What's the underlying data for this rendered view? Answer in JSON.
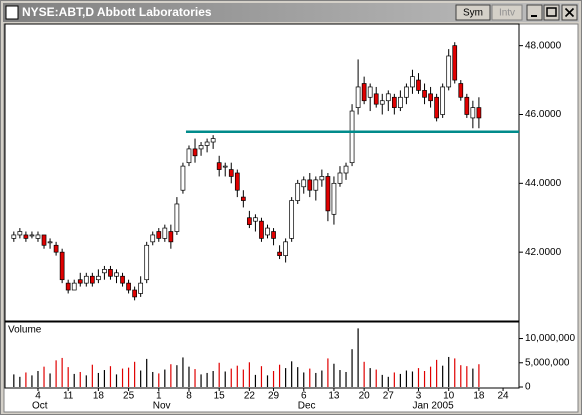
{
  "window": {
    "title": "NYSE:ABT,D Abbott Laboratories",
    "buttons": [
      "Sym",
      "Intv"
    ]
  },
  "chart_data": {
    "type": "candlestick",
    "categories": [
      null,
      null,
      null,
      null,
      "4",
      null,
      null,
      null,
      null,
      "11",
      null,
      null,
      null,
      null,
      "18",
      null,
      null,
      null,
      null,
      "25",
      null,
      null,
      null,
      null,
      "1",
      null,
      null,
      null,
      null,
      "8",
      null,
      null,
      null,
      null,
      "15",
      null,
      null,
      null,
      null,
      "22",
      null,
      null,
      null,
      "29",
      null,
      null,
      null,
      null,
      "6",
      null,
      null,
      null,
      null,
      "13",
      null,
      null,
      null,
      null,
      "20",
      null,
      null,
      null,
      "27",
      null,
      null,
      null,
      null,
      "3",
      null,
      null,
      null,
      null,
      "10",
      null,
      null,
      null,
      null,
      "18",
      null,
      null,
      null,
      "24"
    ],
    "months": [
      null,
      null,
      null,
      null,
      "Oct",
      null,
      null,
      null,
      null,
      null,
      null,
      null,
      null,
      null,
      null,
      null,
      null,
      null,
      null,
      null,
      null,
      null,
      null,
      null,
      "Nov",
      null,
      null,
      null,
      null,
      null,
      null,
      null,
      null,
      null,
      null,
      null,
      null,
      null,
      null,
      null,
      null,
      null,
      null,
      null,
      null,
      null,
      null,
      null,
      "Dec",
      null,
      null,
      null,
      null,
      null,
      null,
      null,
      null,
      null,
      null,
      null,
      null,
      null,
      null,
      null,
      null,
      null,
      null,
      "Jan 2005",
      null,
      null,
      null,
      null,
      null,
      null,
      null,
      null,
      null,
      null,
      null,
      null,
      null,
      null
    ],
    "open": [
      42.4,
      42.5,
      42.5,
      42.5,
      42.4,
      42.5,
      42.3,
      42.2,
      42.0,
      41.1,
      40.9,
      41.2,
      41.1,
      41.3,
      41.2,
      41.4,
      41.5,
      41.3,
      41.3,
      41.1,
      40.9,
      40.8,
      41.2,
      42.3,
      42.6,
      42.4,
      42.6,
      42.6,
      43.8,
      44.6,
      45.0,
      45.0,
      45.1,
      45.2,
      44.6,
      44.5,
      44.4,
      44.3,
      43.6,
      43.0,
      42.9,
      42.9,
      42.5,
      42.6,
      42.0,
      41.9,
      42.4,
      43.5,
      43.9,
      44.1,
      43.8,
      44.1,
      44.2,
      43.1,
      44.0,
      44.3,
      44.6,
      46.2,
      46.9,
      46.5,
      46.6,
      46.3,
      46.4,
      46.5,
      46.2,
      46.5,
      46.8,
      47.0,
      46.7,
      46.6,
      46.5,
      46.0,
      46.8,
      48.0,
      46.9,
      46.5,
      45.9,
      46.2,
      null,
      null,
      null,
      null
    ],
    "high": [
      42.6,
      42.7,
      42.6,
      42.6,
      42.6,
      42.5,
      42.4,
      42.3,
      42.1,
      41.2,
      41.2,
      41.4,
      41.4,
      41.4,
      41.5,
      41.6,
      41.6,
      41.5,
      41.4,
      41.2,
      41.0,
      41.3,
      42.3,
      42.6,
      42.7,
      42.8,
      42.8,
      43.6,
      44.6,
      45.1,
      45.3,
      45.2,
      45.3,
      45.4,
      44.8,
      44.6,
      44.6,
      44.4,
      43.8,
      43.2,
      43.1,
      43.0,
      42.8,
      42.7,
      42.2,
      42.4,
      43.6,
      44.1,
      44.2,
      44.3,
      44.2,
      44.4,
      44.3,
      44.2,
      44.5,
      44.6,
      46.3,
      47.6,
      47.1,
      46.9,
      46.8,
      46.6,
      46.7,
      46.6,
      46.7,
      46.9,
      47.3,
      47.2,
      46.9,
      46.8,
      46.6,
      46.9,
      47.9,
      48.1,
      47.0,
      46.6,
      46.4,
      46.5,
      null,
      null,
      null,
      null
    ],
    "low": [
      42.3,
      42.4,
      42.3,
      42.4,
      42.3,
      42.1,
      42.1,
      41.9,
      41.1,
      40.8,
      40.9,
      41.0,
      41.0,
      41.0,
      41.1,
      41.2,
      41.2,
      41.1,
      41.0,
      40.8,
      40.6,
      40.7,
      41.1,
      42.2,
      42.3,
      42.3,
      42.1,
      42.5,
      43.7,
      44.5,
      44.6,
      44.8,
      44.9,
      45.0,
      44.2,
      44.2,
      44.0,
      43.6,
      43.3,
      42.7,
      42.6,
      42.3,
      42.4,
      42.2,
      41.8,
      41.7,
      42.3,
      43.4,
      43.7,
      43.6,
      43.5,
      43.9,
      42.9,
      42.8,
      43.9,
      44.1,
      44.5,
      46.0,
      46.3,
      46.1,
      46.2,
      46.0,
      46.1,
      46.0,
      46.1,
      46.3,
      46.6,
      46.6,
      46.3,
      46.2,
      45.8,
      45.9,
      46.7,
      46.9,
      46.4,
      45.9,
      45.6,
      45.6,
      null,
      null,
      null,
      null
    ],
    "close": [
      42.5,
      42.6,
      42.4,
      42.5,
      42.5,
      42.2,
      42.3,
      42.0,
      41.2,
      40.9,
      41.1,
      41.1,
      41.3,
      41.1,
      41.3,
      41.5,
      41.3,
      41.4,
      41.1,
      40.9,
      40.7,
      41.1,
      42.2,
      42.5,
      42.4,
      42.7,
      42.3,
      43.4,
      44.5,
      45.0,
      44.8,
      45.1,
      45.2,
      45.3,
      44.4,
      44.5,
      44.2,
      43.8,
      43.5,
      42.8,
      43.0,
      42.4,
      42.7,
      42.4,
      41.9,
      42.3,
      43.5,
      44.0,
      44.1,
      43.8,
      44.1,
      44.2,
      43.2,
      44.0,
      44.3,
      44.5,
      46.1,
      46.8,
      46.4,
      46.8,
      46.3,
      46.4,
      46.6,
      46.2,
      46.5,
      46.8,
      47.1,
      46.7,
      46.5,
      46.4,
      45.9,
      46.8,
      47.7,
      47.0,
      46.5,
      46.0,
      46.2,
      45.9,
      null,
      null,
      null,
      null
    ],
    "volume": [
      2600000,
      2100000,
      3000000,
      2400000,
      3300000,
      4200000,
      2800000,
      5500000,
      6000000,
      4100000,
      2700000,
      3100000,
      2400000,
      4600000,
      2900000,
      3500000,
      4300000,
      2600000,
      3800000,
      4000000,
      5200000,
      3400000,
      5800000,
      3100000,
      2800000,
      3600000,
      4700000,
      4500000,
      6100000,
      4200000,
      3700000,
      2600000,
      2900000,
      3300000,
      5000000,
      3200000,
      3800000,
      4400000,
      3600000,
      5100000,
      2500000,
      4300000,
      2400000,
      3300000,
      4600000,
      3900000,
      5300000,
      4100000,
      3000000,
      3800000,
      2900000,
      3400000,
      5900000,
      4800000,
      3500000,
      3100000,
      7800000,
      12100000,
      5200000,
      3900000,
      3600000,
      2500000,
      2100000,
      3000000,
      2700000,
      3400000,
      3200000,
      3900000,
      3300000,
      4200000,
      5600000,
      4400000,
      6200000,
      5900000,
      4500000,
      4300000,
      3800000,
      4700000,
      null,
      null,
      null,
      null
    ],
    "up_color": "#ffffff",
    "down_color": "#e00000",
    "outline_color": "#000000",
    "volume_up_color": "#000000",
    "volume_down_color": "#e00000",
    "ylim": [
      40,
      48.6
    ],
    "yticks": [
      {
        "value": 42,
        "label": "42.0000"
      },
      {
        "value": 44,
        "label": "44.0000"
      },
      {
        "value": 46,
        "label": "46.0000"
      },
      {
        "value": 48,
        "label": "48.0000"
      }
    ],
    "volume_label": "Volume",
    "y2lim": [
      0,
      13000000
    ],
    "y2ticks": [
      0,
      {
        "value": 5000000,
        "label": "5,000,000"
      },
      {
        "value": 10000000,
        "label": "10,000,000"
      }
    ],
    "level_line": {
      "value": 45.5,
      "color": "#008b8b"
    }
  }
}
